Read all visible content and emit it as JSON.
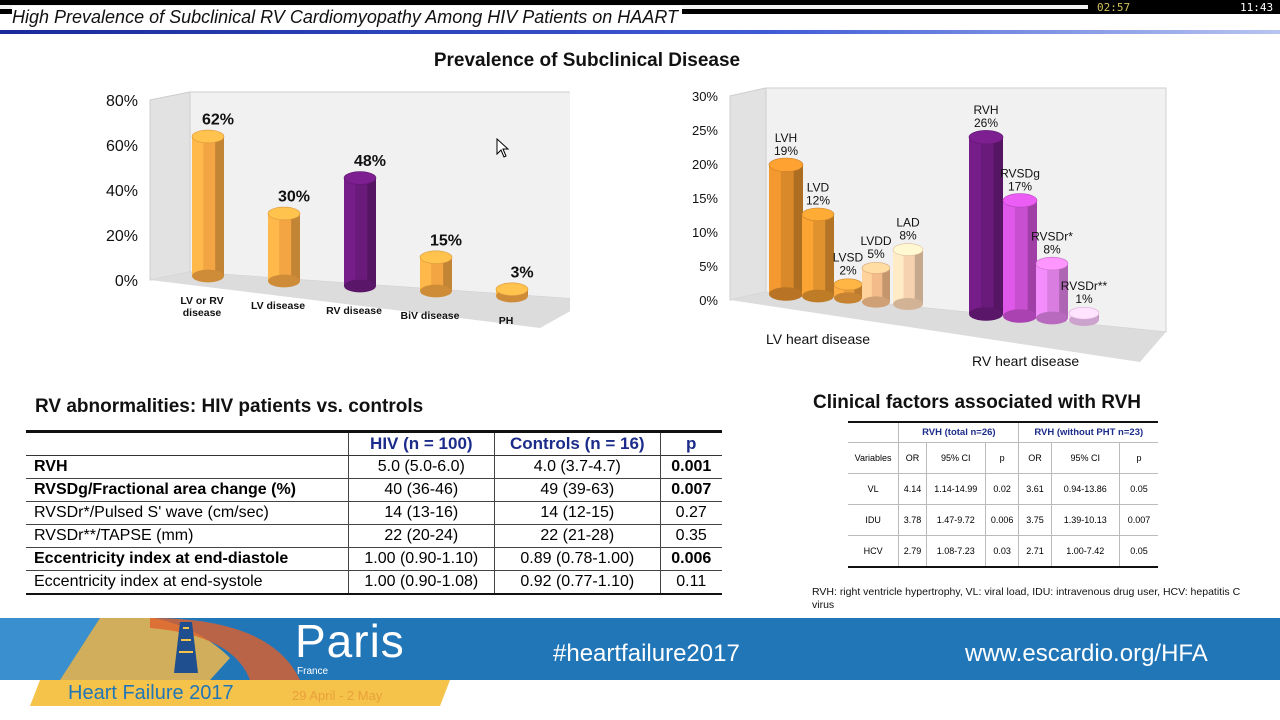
{
  "player": {
    "elapsed": "02:57",
    "clock": "11:43",
    "progress": 0.85
  },
  "slide_title": "High Prevalence of Subclinical RV Cardiomyopathy Among HIV Patients on HAART",
  "prevalence_title": "Prevalence of Subclinical Disease",
  "chart_data": [
    {
      "type": "bar",
      "title": "",
      "categories": [
        "LV or RV disease",
        "LV disease",
        "RV disease",
        "BiV disease",
        "PH"
      ],
      "values": [
        62,
        30,
        48,
        15,
        3
      ],
      "data_labels": [
        "62%",
        "30%",
        "48%",
        "15%",
        "3%"
      ],
      "ylim": [
        0,
        80
      ],
      "yticks": [
        "0%",
        "20%",
        "40%",
        "60%",
        "80%"
      ],
      "colors": [
        "#f2a542",
        "#f2a542",
        "#6a1a7a",
        "#f2a542",
        "#f2a542"
      ]
    },
    {
      "type": "bar",
      "title": "",
      "groups": [
        "LV heart disease",
        "RV heart disease"
      ],
      "categories": [
        "LVH",
        "LVD",
        "LVSD",
        "LVDD",
        "LAD",
        "RVH",
        "RVSDg",
        "RVSDr*",
        "RVSDr**"
      ],
      "values": [
        19,
        12,
        2,
        5,
        8,
        26,
        17,
        8,
        1
      ],
      "data_labels": [
        "19%",
        "12%",
        "2%",
        "5%",
        "8%",
        "26%",
        "17%",
        "8%",
        "1%"
      ],
      "ylim": [
        0,
        30
      ],
      "yticks": [
        "0%",
        "5%",
        "10%",
        "15%",
        "20%",
        "25%",
        "30%"
      ],
      "colors": [
        "#d9892a",
        "#e0922e",
        "#e99a3a",
        "#f4bb8a",
        "#f7d2b0",
        "#6a1a7a",
        "#c84fd0",
        "#d97ee0",
        "#f0c0f0"
      ]
    }
  ],
  "rv_table": {
    "title": "RV abnormalities: HIV patients vs. controls",
    "headers": [
      "",
      "HIV (n = 100)",
      "Controls (n = 16)",
      "p"
    ],
    "rows": [
      {
        "label": "RVH",
        "hiv": "5.0 (5.0-6.0)",
        "controls": "4.0 (3.7-4.7)",
        "p": "0.001",
        "bold": true
      },
      {
        "label": "RVSDg/Fractional area change (%)",
        "hiv": "40 (36-46)",
        "controls": "49 (39-63)",
        "p": "0.007",
        "bold": true
      },
      {
        "label": "RVSDr*/Pulsed S' wave (cm/sec)",
        "hiv": "14 (13-16)",
        "controls": "14 (12-15)",
        "p": "0.27",
        "bold": false
      },
      {
        "label": "RVSDr**/TAPSE (mm)",
        "hiv": "22 (20-24)",
        "controls": "22 (21-28)",
        "p": "0.35",
        "bold": false
      },
      {
        "label": "Eccentricity index at end-diastole",
        "hiv": "1.00 (0.90-1.10)",
        "controls": "0.89 (0.78-1.00)",
        "p": "0.006",
        "bold": true
      },
      {
        "label": "Eccentricity index at end-systole",
        "hiv": "1.00 (0.90-1.08)",
        "controls": "0.92 (0.77-1.10)",
        "p": "0.11",
        "bold": false
      }
    ]
  },
  "cf_table": {
    "title": "Clinical factors associated with RVH",
    "group1": "RVH (total n=26)",
    "group2": "RVH (without PHT n=23)",
    "subheaders": [
      "Variables",
      "OR",
      "95% CI",
      "p",
      "OR",
      "95% CI",
      "p"
    ],
    "rows": [
      [
        "VL",
        "4.14",
        "1.14-14.99",
        "0.02",
        "3.61",
        "0.94-13.86",
        "0.05"
      ],
      [
        "IDU",
        "3.78",
        "1.47-9.72",
        "0.006",
        "3.75",
        "1.39-10.13",
        "0.007"
      ],
      [
        "HCV",
        "2.79",
        "1.08-7.23",
        "0.03",
        "2.71",
        "1.00-7.42",
        "0.05"
      ]
    ],
    "note": "RVH: right ventricle hypertrophy, VL: viral load, IDU: intravenous drug user, HCV: hepatitis C virus"
  },
  "footer": {
    "city": "Paris",
    "country": "France",
    "event": "Heart Failure 2017",
    "dates": "29 April - 2 May",
    "hashtag": "#heartfailure2017",
    "website": "www.escardio.org/HFA"
  }
}
